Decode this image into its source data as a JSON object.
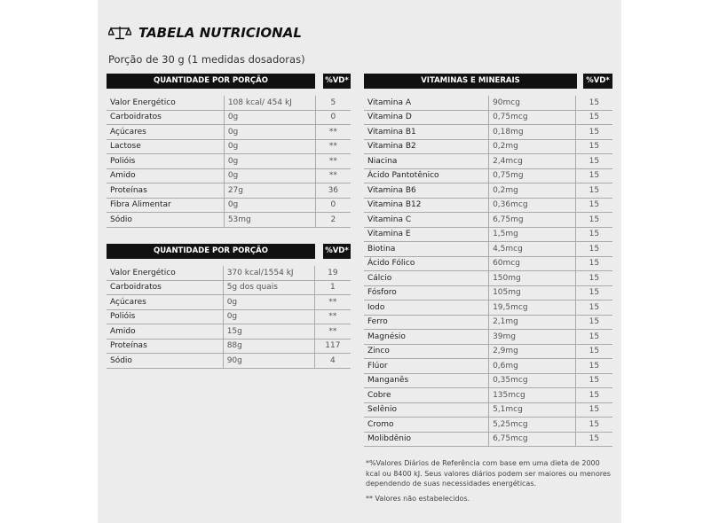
{
  "title": "TABELA NUTRICIONAL",
  "portion": "Porção de 30 g (1 medidas dosadoras)",
  "table1": {
    "header": "QUANTIDADE POR PORÇÃO",
    "vd": "%VD*",
    "rows": [
      [
        "Valor Energético",
        "108 kcal/ 454 kJ",
        "5"
      ],
      [
        "Carboidratos",
        "0g",
        "0"
      ],
      [
        "Açúcares",
        "0g",
        "**"
      ],
      [
        "Lactose",
        "0g",
        "**"
      ],
      [
        "Polióis",
        "0g",
        "**"
      ],
      [
        "Amido",
        "0g",
        "**"
      ],
      [
        "Proteínas",
        "27g",
        "36"
      ],
      [
        "Fibra Alimentar",
        "0g",
        "0"
      ],
      [
        "Sódio",
        "53mg",
        "2"
      ]
    ]
  },
  "table2": {
    "header": "QUANTIDADE POR PORÇÃO",
    "vd": "%VD*",
    "rows": [
      [
        "Valor Energético",
        "370 kcal/1554 kJ",
        "19"
      ],
      [
        "Carboidratos",
        "5g dos quais",
        "1"
      ],
      [
        "Açúcares",
        "0g",
        "**"
      ],
      [
        "Polióis",
        "0g",
        "**"
      ],
      [
        "Amido",
        "15g",
        "**"
      ],
      [
        "Proteínas",
        "88g",
        "117"
      ],
      [
        "Sódio",
        "90g",
        "4"
      ]
    ]
  },
  "table3": {
    "header": "VITAMINAS E MINERAIS",
    "vd": "%VD*",
    "rows": [
      [
        "Vitamina A",
        "90mcg",
        "15"
      ],
      [
        "Vitamina D",
        "0,75mcg",
        "15"
      ],
      [
        "Vitamina B1",
        "0,18mg",
        "15"
      ],
      [
        "Vitamina B2",
        "0,2mg",
        "15"
      ],
      [
        "Niacina",
        "2,4mcg",
        "15"
      ],
      [
        "Ácido Pantotênico",
        "0,75mg",
        "15"
      ],
      [
        "Vitamina B6",
        "0,2mg",
        "15"
      ],
      [
        "Vitamina B12",
        "0,36mcg",
        "15"
      ],
      [
        "Vitamina C",
        "6,75mg",
        "15"
      ],
      [
        "Vitamina E",
        "1,5mg",
        "15"
      ],
      [
        "Biotina",
        "4,5mcg",
        "15"
      ],
      [
        "Ácido Fólico",
        "60mcg",
        "15"
      ],
      [
        "Cálcio",
        "150mg",
        "15"
      ],
      [
        "Fósforo",
        "105mg",
        "15"
      ],
      [
        "Iodo",
        "19,5mcg",
        "15"
      ],
      [
        "Ferro",
        "2,1mg",
        "15"
      ],
      [
        "Magnésio",
        "39mg",
        "15"
      ],
      [
        "Zinco",
        "2,9mg",
        "15"
      ],
      [
        "Flúor",
        "0,6mg",
        "15"
      ],
      [
        "Manganês",
        "0,35mcg",
        "15"
      ],
      [
        "Cobre",
        "135mcg",
        "15"
      ],
      [
        "Selênio",
        "5,1mcg",
        "15"
      ],
      [
        "Cromo",
        "5,25mcg",
        "15"
      ],
      [
        "Molibdênio",
        "6,75mcg",
        "15"
      ]
    ]
  },
  "note1": "*%Valores Diários de Referência com base em uma dieta de 2000 kcal ou 8400 kJ. Seus valores diários podem ser maiores ou menores dependendo de suas necessidades energéticas.",
  "note2": "** Valores não estabelecidos.",
  "icon": "scale-icon"
}
